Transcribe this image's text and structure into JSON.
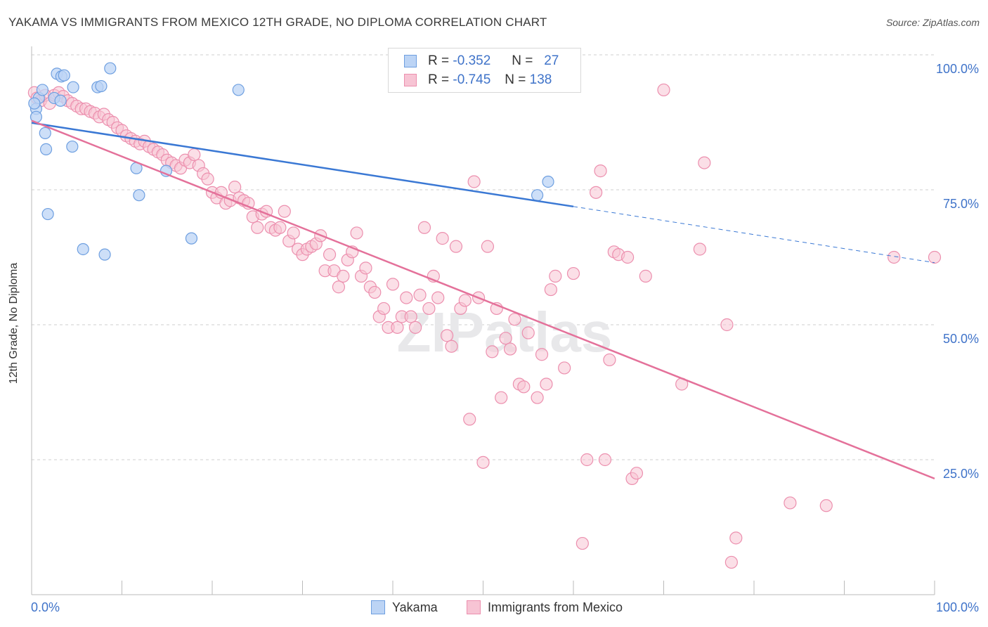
{
  "title": "YAKAMA VS IMMIGRANTS FROM MEXICO 12TH GRADE, NO DIPLOMA CORRELATION CHART",
  "source": "Source: ZipAtlas.com",
  "legend": {
    "series1": {
      "r_label": "R =",
      "r_value": "-0.352",
      "n_label": "N =",
      "n_value": "27"
    },
    "series2": {
      "r_label": "R =",
      "r_value": "-0.745",
      "n_label": "N =",
      "n_value": "138"
    }
  },
  "bottom_legend": {
    "series1": "Yakama",
    "series2": "Immigrants from Mexico"
  },
  "colors": {
    "series1_fill": "#bcd4f5",
    "series1_stroke": "#6e9fe0",
    "series1_line": "#3a78d4",
    "series2_fill": "#f7c4d4",
    "series2_stroke": "#ec8fae",
    "series2_line": "#e4719a",
    "tick_text": "#3f73c9",
    "grid": "#cfcfcf"
  },
  "watermark": "ZIPatlas",
  "chart_data": {
    "type": "scatter",
    "title": "YAKAMA VS IMMIGRANTS FROM MEXICO 12TH GRADE, NO DIPLOMA CORRELATION CHART",
    "xlabel": "",
    "ylabel": "12th Grade, No Diploma",
    "xlim": [
      0,
      100
    ],
    "ylim": [
      0,
      102
    ],
    "x_tick_labels": [
      "0.0%",
      "100.0%"
    ],
    "y_ticks": [
      25,
      50,
      75,
      100
    ],
    "y_tick_labels": [
      "25.0%",
      "50.0%",
      "75.0%",
      "100.0%"
    ],
    "grid": "horizontal dashed",
    "legend_position": "top-center",
    "series": [
      {
        "name": "Yakama",
        "points": [
          [
            0.5,
            90
          ],
          [
            0.5,
            88.5
          ],
          [
            0.8,
            92
          ],
          [
            1.5,
            85.5
          ],
          [
            1.6,
            82.5
          ],
          [
            1.8,
            70.5
          ],
          [
            2.8,
            96.5
          ],
          [
            3.3,
            96
          ],
          [
            3.6,
            96.2
          ],
          [
            4.5,
            83
          ],
          [
            4.6,
            94
          ],
          [
            5.7,
            64
          ],
          [
            7.3,
            94
          ],
          [
            7.7,
            94.2
          ],
          [
            8.1,
            63
          ],
          [
            8.7,
            97.5
          ],
          [
            11.6,
            79
          ],
          [
            11.9,
            74
          ],
          [
            14.9,
            78.5
          ],
          [
            17.7,
            66
          ],
          [
            22.9,
            93.5
          ],
          [
            56,
            74
          ],
          [
            57.2,
            76.5
          ],
          [
            1.2,
            93.5
          ],
          [
            2.5,
            92
          ],
          [
            3.2,
            91.5
          ],
          [
            0.3,
            91
          ]
        ],
        "trend": {
          "x0": 0,
          "y0": 87.4,
          "x1": 60,
          "y1": 71.9,
          "dash_to_x": 100,
          "dash_to_y": 61.5
        }
      },
      {
        "name": "Immigrants from Mexico",
        "points": [
          [
            0.3,
            93
          ],
          [
            0.6,
            92
          ],
          [
            1,
            91.5
          ],
          [
            1.5,
            92.5
          ],
          [
            2,
            91
          ],
          [
            2.5,
            92.5
          ],
          [
            3,
            93
          ],
          [
            3.5,
            92.3
          ],
          [
            4,
            91.5
          ],
          [
            4.5,
            91
          ],
          [
            5,
            90.5
          ],
          [
            5.5,
            90
          ],
          [
            6,
            90
          ],
          [
            6.5,
            89.5
          ],
          [
            7,
            89.2
          ],
          [
            7.5,
            88.5
          ],
          [
            8,
            89
          ],
          [
            8.5,
            88
          ],
          [
            9,
            87.5
          ],
          [
            9.5,
            86.5
          ],
          [
            10,
            86
          ],
          [
            10.5,
            85
          ],
          [
            11,
            84.5
          ],
          [
            11.5,
            84
          ],
          [
            12,
            83.5
          ],
          [
            12.5,
            84
          ],
          [
            13,
            83
          ],
          [
            13.5,
            82.5
          ],
          [
            14,
            82
          ],
          [
            14.5,
            81.5
          ],
          [
            15,
            80.5
          ],
          [
            15.5,
            80
          ],
          [
            16,
            79.5
          ],
          [
            16.5,
            79
          ],
          [
            17,
            80.5
          ],
          [
            17.5,
            80
          ],
          [
            18,
            81.5
          ],
          [
            18.5,
            79.5
          ],
          [
            19,
            78
          ],
          [
            19.5,
            77
          ],
          [
            20,
            74.5
          ],
          [
            20.5,
            73.5
          ],
          [
            21,
            74.5
          ],
          [
            21.5,
            72.5
          ],
          [
            22,
            73
          ],
          [
            22.5,
            75.5
          ],
          [
            23,
            73.5
          ],
          [
            23.5,
            73
          ],
          [
            24,
            72.5
          ],
          [
            24.5,
            70
          ],
          [
            25,
            68
          ],
          [
            25.5,
            70.5
          ],
          [
            26,
            71
          ],
          [
            26.5,
            68
          ],
          [
            27,
            67.5
          ],
          [
            27.5,
            68
          ],
          [
            28,
            71
          ],
          [
            28.5,
            65.5
          ],
          [
            29,
            67
          ],
          [
            29.5,
            64
          ],
          [
            30,
            63
          ],
          [
            30.5,
            64
          ],
          [
            31,
            64.5
          ],
          [
            31.5,
            65
          ],
          [
            32,
            66.5
          ],
          [
            32.5,
            60
          ],
          [
            33,
            63
          ],
          [
            33.5,
            60
          ],
          [
            34,
            57
          ],
          [
            34.5,
            59
          ],
          [
            35,
            62
          ],
          [
            35.5,
            63.5
          ],
          [
            36,
            67
          ],
          [
            36.5,
            59
          ],
          [
            37,
            60.5
          ],
          [
            37.5,
            57
          ],
          [
            38,
            56
          ],
          [
            38.5,
            51.5
          ],
          [
            39,
            53
          ],
          [
            39.5,
            49.5
          ],
          [
            40,
            57.5
          ],
          [
            40.5,
            49.5
          ],
          [
            41,
            51.5
          ],
          [
            41.5,
            55
          ],
          [
            42,
            51.5
          ],
          [
            42.5,
            49.5
          ],
          [
            43,
            55.5
          ],
          [
            43.5,
            68
          ],
          [
            44,
            53
          ],
          [
            44.5,
            59
          ],
          [
            45,
            55
          ],
          [
            45.5,
            66
          ],
          [
            46,
            48
          ],
          [
            46.5,
            46
          ],
          [
            47,
            64.5
          ],
          [
            47.5,
            53
          ],
          [
            48,
            54.5
          ],
          [
            48.5,
            32.5
          ],
          [
            49,
            76.5
          ],
          [
            49.5,
            55
          ],
          [
            50,
            24.5
          ],
          [
            50.5,
            64.5
          ],
          [
            51,
            45
          ],
          [
            51.5,
            53
          ],
          [
            52,
            36.5
          ],
          [
            52.5,
            47.5
          ],
          [
            53,
            45.5
          ],
          [
            53.5,
            51
          ],
          [
            54,
            39
          ],
          [
            54.5,
            38.5
          ],
          [
            55,
            48.5
          ],
          [
            55.5,
            100
          ],
          [
            56,
            36.5
          ],
          [
            56.5,
            44.5
          ],
          [
            57,
            39
          ],
          [
            57.5,
            56.5
          ],
          [
            58,
            59
          ],
          [
            59,
            42
          ],
          [
            60,
            59.5
          ],
          [
            61,
            9.5
          ],
          [
            61.5,
            25
          ],
          [
            62.5,
            74.5
          ],
          [
            63,
            78.5
          ],
          [
            63.5,
            25
          ],
          [
            64,
            43.5
          ],
          [
            64.5,
            63.5
          ],
          [
            65,
            63
          ],
          [
            66,
            62.5
          ],
          [
            66.5,
            21.5
          ],
          [
            67,
            22.5
          ],
          [
            68,
            59
          ],
          [
            70,
            93.5
          ],
          [
            72,
            39
          ],
          [
            74,
            64
          ],
          [
            74.5,
            80
          ],
          [
            77,
            50
          ],
          [
            77.5,
            6
          ],
          [
            78,
            10.5
          ],
          [
            84,
            17
          ],
          [
            88,
            16.5
          ],
          [
            95.5,
            62.5
          ],
          [
            100,
            62.5
          ]
        ],
        "trend": {
          "x0": 0,
          "y0": 87.8,
          "x1": 100,
          "y1": 21.5
        }
      }
    ]
  }
}
